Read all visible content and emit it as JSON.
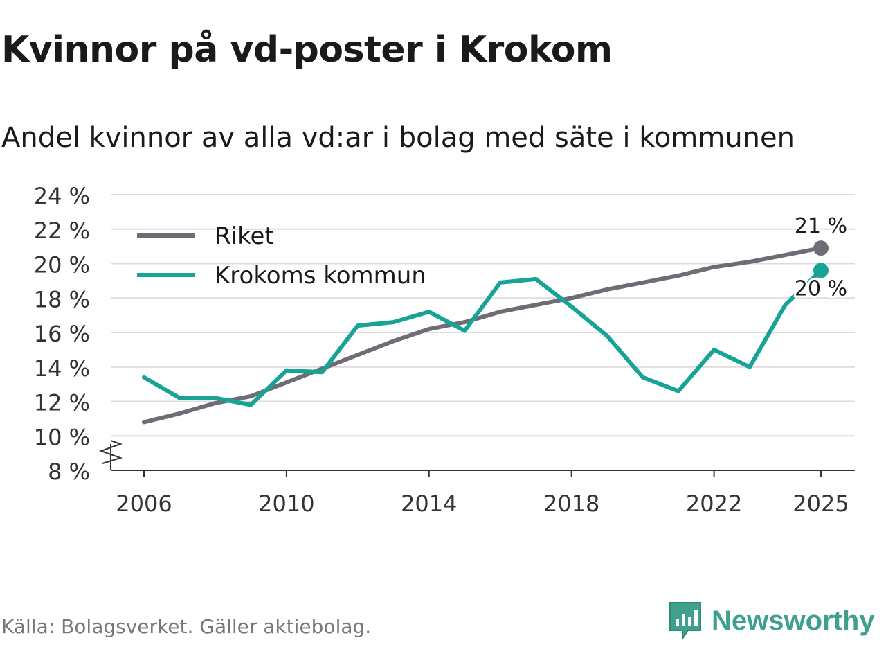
{
  "title": "Kvinnor på vd-poster i Krokom",
  "subtitle": "Andel kvinnor av alla vd:ar i bolag med säte i kommunen",
  "source": "Källa: Bolagsverket. Gäller aktiebolag.",
  "brand": "Newsworthy",
  "colors": {
    "riket": "#6e6d75",
    "krokom": "#17a497",
    "grid": "#dcdcdc",
    "brand": "#3fa08d"
  },
  "chart_data": {
    "type": "line",
    "title": "Kvinnor på vd-poster i Krokom",
    "subtitle": "Andel kvinnor av alla vd:ar i bolag med säte i kommunen",
    "xlabel": "",
    "ylabel": "",
    "x": [
      2006,
      2007,
      2008,
      2009,
      2010,
      2011,
      2012,
      2013,
      2014,
      2015,
      2016,
      2017,
      2018,
      2019,
      2020,
      2021,
      2022,
      2023,
      2024,
      2025
    ],
    "xticks": [
      "2006",
      "2010",
      "2014",
      "2018",
      "2022",
      "2025"
    ],
    "ylim": [
      8,
      24
    ],
    "yticks": [
      "8 %",
      "10 %",
      "12 %",
      "14 %",
      "16 %",
      "18 %",
      "20 %",
      "22 %",
      "24 %"
    ],
    "axis_break": true,
    "legend": [
      "Riket",
      "Krokoms kommun"
    ],
    "legend_position": "top-left",
    "series": [
      {
        "name": "Riket",
        "values": [
          10.8,
          11.3,
          11.9,
          12.3,
          13.1,
          13.9,
          14.7,
          15.5,
          16.2,
          16.6,
          17.2,
          17.6,
          18.0,
          18.5,
          18.9,
          19.3,
          19.8,
          20.1,
          20.5,
          20.9
        ],
        "end_label": "21 %"
      },
      {
        "name": "Krokoms kommun",
        "values": [
          13.4,
          12.2,
          12.2,
          11.8,
          13.8,
          13.7,
          16.4,
          16.6,
          17.2,
          16.1,
          18.9,
          19.1,
          17.5,
          15.8,
          13.4,
          12.6,
          15.0,
          14.0,
          17.6,
          19.6
        ],
        "end_label": "20 %"
      }
    ]
  }
}
